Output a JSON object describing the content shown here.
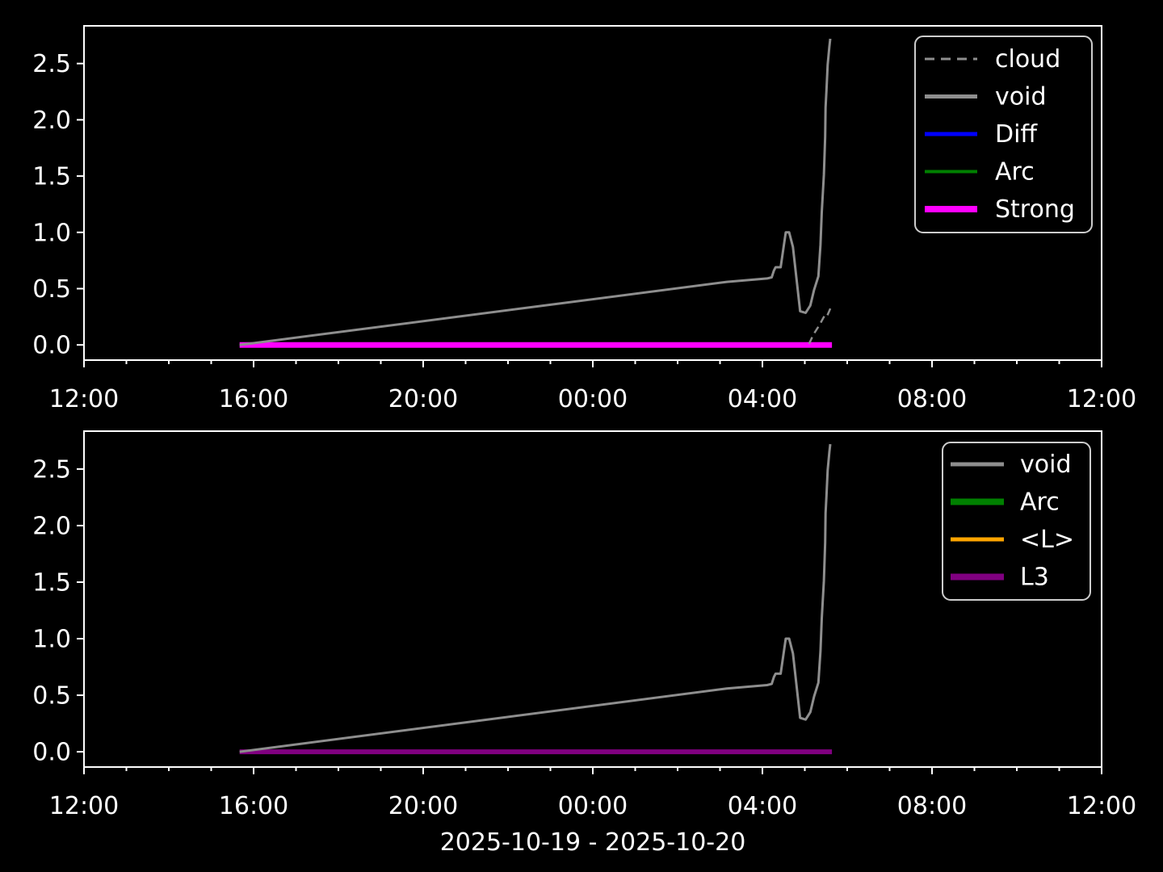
{
  "figure": {
    "background": "#000000",
    "text_color": "#ffffff",
    "axis_color": "#ffffff",
    "legend_edge_color": "#cccccc",
    "xlabel": "2025-10-19 - 2025-10-20"
  },
  "chart_data": [
    {
      "type": "line",
      "title": "",
      "xlabel": "",
      "ylabel": "",
      "x_axis": {
        "lim": [
          0,
          24
        ],
        "unit": "hours from 2025-10-19 12:00",
        "major_ticks": [
          {
            "pos": 0,
            "label": "12:00"
          },
          {
            "pos": 4,
            "label": "16:00"
          },
          {
            "pos": 8,
            "label": "20:00"
          },
          {
            "pos": 12,
            "label": "00:00"
          },
          {
            "pos": 16,
            "label": "04:00"
          },
          {
            "pos": 20,
            "label": "08:00"
          },
          {
            "pos": 24,
            "label": "12:00"
          }
        ],
        "minor_step": 1
      },
      "y_axis": {
        "lim": [
          -0.135,
          2.835
        ],
        "ticks": [
          {
            "pos": 0.0,
            "label": "0.0"
          },
          {
            "pos": 0.5,
            "label": "0.5"
          },
          {
            "pos": 1.0,
            "label": "1.0"
          },
          {
            "pos": 1.5,
            "label": "1.5"
          },
          {
            "pos": 2.0,
            "label": "2.0"
          },
          {
            "pos": 2.5,
            "label": "2.5"
          }
        ]
      },
      "series": [
        {
          "name": "Strong",
          "color": "#ff00ff",
          "width": 7,
          "dash": null,
          "points": [
            [
              3.67,
              0.0
            ],
            [
              17.64,
              0.0
            ]
          ]
        },
        {
          "name": "cloud",
          "color": "#8e8e8e",
          "width": 2.5,
          "dash": [
            9,
            6
          ],
          "points": [
            [
              17.1,
              0.01
            ],
            [
              17.2,
              0.09
            ],
            [
              17.35,
              0.18
            ],
            [
              17.48,
              0.27
            ],
            [
              17.53,
              0.26
            ],
            [
              17.62,
              0.34
            ]
          ]
        },
        {
          "name": "void",
          "color": "#8e8e8e",
          "width": 3,
          "dash": null,
          "points": [
            [
              3.67,
              0.0
            ],
            [
              15.16,
              0.56
            ],
            [
              16.11,
              0.59
            ],
            [
              16.22,
              0.6
            ],
            [
              16.27,
              0.66
            ],
            [
              16.31,
              0.69
            ],
            [
              16.43,
              0.69
            ],
            [
              16.55,
              1.0
            ],
            [
              16.63,
              1.0
            ],
            [
              16.72,
              0.87
            ],
            [
              16.89,
              0.3
            ],
            [
              17.02,
              0.285
            ],
            [
              17.13,
              0.35
            ],
            [
              17.22,
              0.49
            ],
            [
              17.32,
              0.61
            ],
            [
              17.37,
              0.89
            ],
            [
              17.4,
              1.18
            ],
            [
              17.45,
              1.51
            ],
            [
              17.48,
              1.85
            ],
            [
              17.49,
              2.11
            ],
            [
              17.51,
              2.26
            ],
            [
              17.54,
              2.49
            ],
            [
              17.58,
              2.65
            ],
            [
              17.6,
              2.72
            ]
          ]
        }
      ],
      "legend": {
        "position": "upper right",
        "entries": [
          {
            "label": "cloud",
            "color": "#8e8e8e",
            "width": 3,
            "dash": [
              12,
              8
            ]
          },
          {
            "label": "void",
            "color": "#8e8e8e",
            "width": 5,
            "dash": null
          },
          {
            "label": "Diff",
            "color": "#0000ff",
            "width": 5,
            "dash": null
          },
          {
            "label": "Arc",
            "color": "#008000",
            "width": 4,
            "dash": null
          },
          {
            "label": "Strong",
            "color": "#ff00ff",
            "width": 8,
            "dash": null
          }
        ]
      }
    },
    {
      "type": "line",
      "title": "",
      "xlabel": "2025-10-19 - 2025-10-20",
      "ylabel": "",
      "x_axis": {
        "lim": [
          0,
          24
        ],
        "unit": "hours from 2025-10-19 12:00",
        "major_ticks": [
          {
            "pos": 0,
            "label": "12:00"
          },
          {
            "pos": 4,
            "label": "16:00"
          },
          {
            "pos": 8,
            "label": "20:00"
          },
          {
            "pos": 12,
            "label": "00:00"
          },
          {
            "pos": 16,
            "label": "04:00"
          },
          {
            "pos": 20,
            "label": "08:00"
          },
          {
            "pos": 24,
            "label": "12:00"
          }
        ],
        "minor_step": 1
      },
      "y_axis": {
        "lim": [
          -0.135,
          2.835
        ],
        "ticks": [
          {
            "pos": 0.0,
            "label": "0.0"
          },
          {
            "pos": 0.5,
            "label": "0.5"
          },
          {
            "pos": 1.0,
            "label": "1.0"
          },
          {
            "pos": 1.5,
            "label": "1.5"
          },
          {
            "pos": 2.0,
            "label": "2.0"
          },
          {
            "pos": 2.5,
            "label": "2.5"
          }
        ]
      },
      "series": [
        {
          "name": "L3",
          "color": "#800080",
          "width": 6,
          "dash": null,
          "points": [
            [
              3.67,
              0.0
            ],
            [
              17.64,
              0.0
            ]
          ]
        },
        {
          "name": "void",
          "color": "#8e8e8e",
          "width": 3,
          "dash": null,
          "points": [
            [
              3.67,
              0.0
            ],
            [
              15.16,
              0.56
            ],
            [
              16.11,
              0.59
            ],
            [
              16.22,
              0.6
            ],
            [
              16.27,
              0.66
            ],
            [
              16.31,
              0.69
            ],
            [
              16.43,
              0.69
            ],
            [
              16.55,
              1.0
            ],
            [
              16.63,
              1.0
            ],
            [
              16.72,
              0.87
            ],
            [
              16.89,
              0.3
            ],
            [
              17.02,
              0.285
            ],
            [
              17.13,
              0.35
            ],
            [
              17.22,
              0.49
            ],
            [
              17.32,
              0.61
            ],
            [
              17.37,
              0.89
            ],
            [
              17.4,
              1.18
            ],
            [
              17.45,
              1.51
            ],
            [
              17.48,
              1.85
            ],
            [
              17.49,
              2.11
            ],
            [
              17.51,
              2.26
            ],
            [
              17.54,
              2.49
            ],
            [
              17.58,
              2.65
            ],
            [
              17.6,
              2.72
            ]
          ]
        }
      ],
      "legend": {
        "position": "upper right",
        "entries": [
          {
            "label": "void",
            "color": "#8e8e8e",
            "width": 5,
            "dash": null
          },
          {
            "label": "Arc",
            "color": "#008000",
            "width": 8,
            "dash": null
          },
          {
            "label": "<L>",
            "color": "#ffa500",
            "width": 5,
            "dash": null
          },
          {
            "label": "L3",
            "color": "#800080",
            "width": 8,
            "dash": null
          }
        ]
      }
    }
  ]
}
